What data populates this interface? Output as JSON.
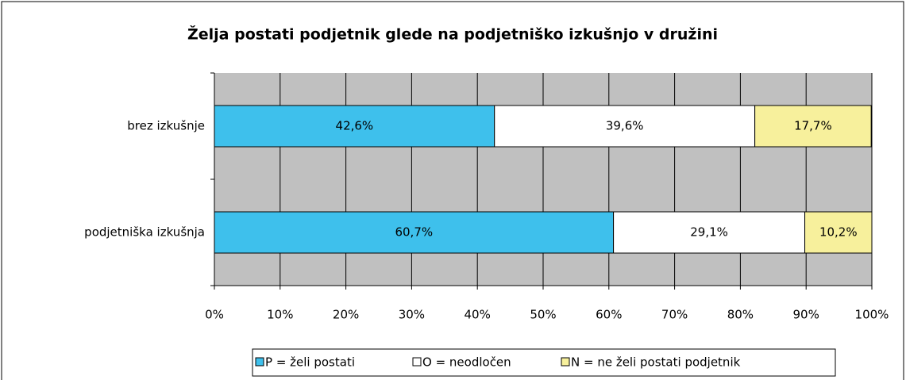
{
  "chart_data": {
    "type": "stacked_bar_horizontal",
    "title": "Želja postati podjetnik glede na podjetniško izkušnjo v družini",
    "categories": [
      "brez izkušnje",
      "podjetniška izkušnja"
    ],
    "series": [
      {
        "name": "P = želi postati",
        "color": "#3ec0ec",
        "values": [
          42.6,
          60.7
        ],
        "value_labels": [
          "42,6%",
          "60,7%"
        ]
      },
      {
        "name": "O = neodločen",
        "color": "#ffffff",
        "values": [
          39.6,
          29.1
        ],
        "value_labels": [
          "39,6%",
          "29,1%"
        ]
      },
      {
        "name": "N = ne želi postati podjetnik",
        "color": "#f7f09c",
        "values": [
          17.7,
          10.2
        ],
        "value_labels": [
          "17,7%",
          "10,2%"
        ]
      }
    ],
    "xlim": [
      0,
      100
    ],
    "xticks": [
      {
        "value": 0,
        "label": "0%"
      },
      {
        "value": 10,
        "label": "10%"
      },
      {
        "value": 20,
        "label": "20%"
      },
      {
        "value": 30,
        "label": "30%"
      },
      {
        "value": 40,
        "label": "40%"
      },
      {
        "value": 50,
        "label": "50%"
      },
      {
        "value": 60,
        "label": "60%"
      },
      {
        "value": 70,
        "label": "70%"
      },
      {
        "value": 80,
        "label": "80%"
      },
      {
        "value": 90,
        "label": "90%"
      },
      {
        "value": 100,
        "label": "100%"
      }
    ],
    "grid": true,
    "legend": "bottom"
  }
}
